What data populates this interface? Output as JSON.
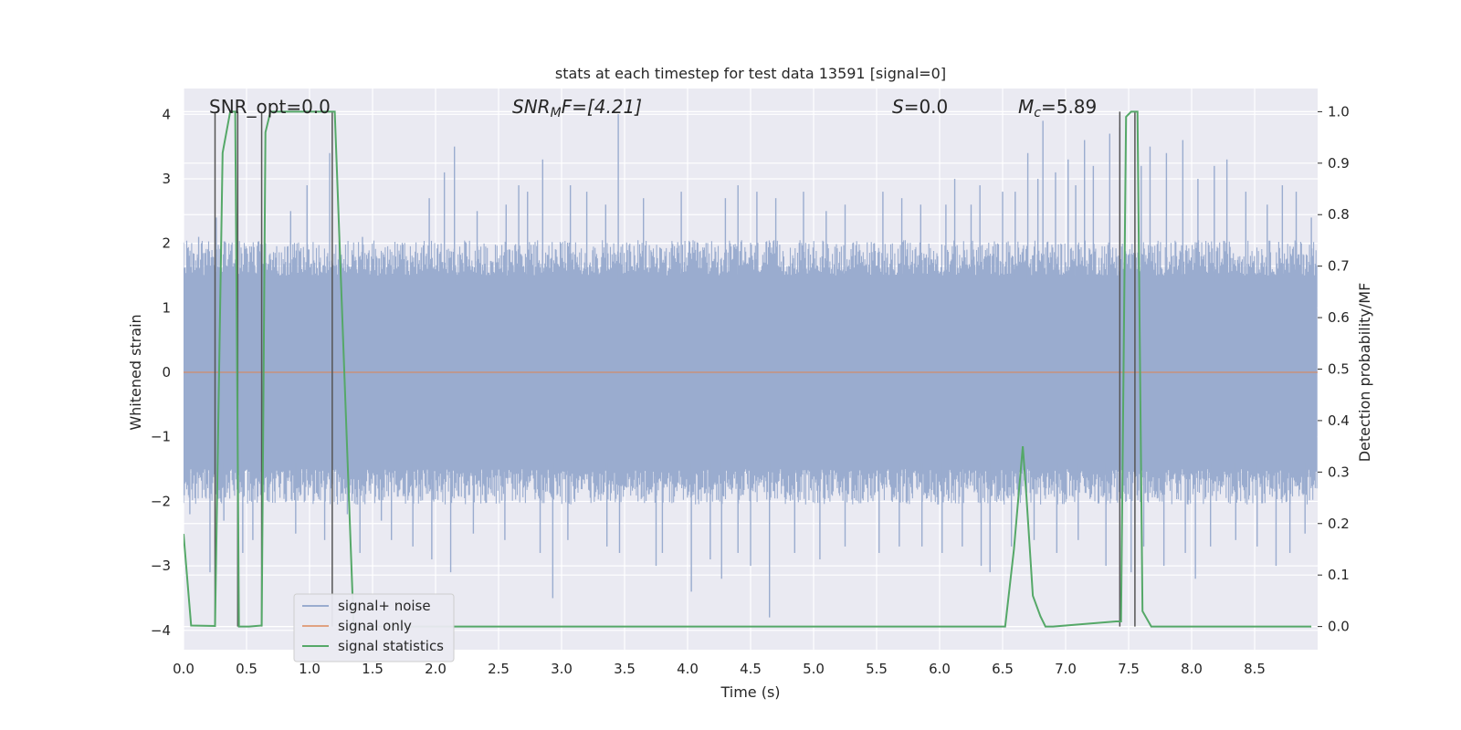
{
  "chart_data": {
    "type": "line",
    "title": "stats at each timestep for test data 13591 [signal=0]",
    "xlabel": "Time (s)",
    "ylabel_left": "Whitened strain",
    "ylabel_right": "Detection probability/MF",
    "xlim": [
      0.0,
      9.0
    ],
    "ylim_left": [
      -4.3,
      4.4
    ],
    "ylim_right": [
      -0.045,
      1.045
    ],
    "xticks": [
      "0.0",
      "0.5",
      "1.0",
      "1.5",
      "2.0",
      "2.5",
      "3.0",
      "3.5",
      "4.0",
      "4.5",
      "5.0",
      "5.5",
      "6.0",
      "6.5",
      "7.0",
      "7.5",
      "8.0",
      "8.5"
    ],
    "yticks_left": [
      "−4",
      "−3",
      "−2",
      "−1",
      "0",
      "1",
      "2",
      "3",
      "4"
    ],
    "yticks_right": [
      "0.0",
      "0.1",
      "0.2",
      "0.3",
      "0.4",
      "0.5",
      "0.6",
      "0.7",
      "0.8",
      "0.9",
      "1.0"
    ],
    "annotations": {
      "snr_opt": "SNR_opt=0.0",
      "snr_mf_sym": "SNR",
      "snr_mf_sub": "M",
      "snr_mf_rest": "F=[4.21]",
      "s_sym": "S",
      "s_rest": "=0.0",
      "mc_sym": "M",
      "mc_sub": "c",
      "mc_rest": "=5.89"
    },
    "legend": {
      "placement": "lower-left",
      "entries": [
        "signal+ noise",
        "signal only",
        "signal statistics"
      ]
    },
    "colors": {
      "background": "#eaeaf2",
      "grid": "#ffffff",
      "noise": "#9aaccf",
      "signal": "#dd8452",
      "statistics": "#55a868",
      "markers": "#555555"
    },
    "series": [
      {
        "name": "signal+ noise",
        "kind": "strain",
        "band_abs": 1.5,
        "spike_up": [
          [
            0.12,
            2.1
          ],
          [
            0.26,
            2.4
          ],
          [
            0.42,
            2.2
          ],
          [
            0.65,
            2.0
          ],
          [
            0.85,
            2.5
          ],
          [
            0.98,
            2.9
          ],
          [
            1.16,
            3.4
          ],
          [
            1.42,
            2.1
          ],
          [
            1.95,
            2.7
          ],
          [
            2.07,
            3.1
          ],
          [
            2.15,
            3.5
          ],
          [
            2.33,
            2.5
          ],
          [
            2.56,
            2.6
          ],
          [
            2.66,
            2.9
          ],
          [
            2.73,
            2.8
          ],
          [
            2.85,
            3.3
          ],
          [
            3.07,
            2.9
          ],
          [
            3.2,
            2.8
          ],
          [
            3.35,
            2.6
          ],
          [
            3.45,
            4.0
          ],
          [
            3.65,
            2.7
          ],
          [
            3.95,
            2.8
          ],
          [
            4.3,
            2.7
          ],
          [
            4.4,
            2.9
          ],
          [
            4.55,
            2.8
          ],
          [
            4.7,
            2.7
          ],
          [
            4.92,
            2.8
          ],
          [
            5.1,
            2.5
          ],
          [
            5.25,
            2.6
          ],
          [
            5.55,
            2.8
          ],
          [
            5.7,
            2.7
          ],
          [
            5.85,
            2.6
          ],
          [
            6.05,
            2.6
          ],
          [
            6.12,
            3.0
          ],
          [
            6.25,
            2.6
          ],
          [
            6.32,
            2.9
          ],
          [
            6.5,
            2.8
          ],
          [
            6.6,
            2.8
          ],
          [
            6.7,
            3.4
          ],
          [
            6.78,
            3.0
          ],
          [
            6.82,
            3.9
          ],
          [
            6.92,
            3.1
          ],
          [
            7.02,
            3.3
          ],
          [
            7.08,
            2.9
          ],
          [
            7.15,
            3.6
          ],
          [
            7.22,
            3.2
          ],
          [
            7.35,
            3.7
          ],
          [
            7.43,
            3.8
          ],
          [
            7.6,
            3.2
          ],
          [
            7.67,
            3.5
          ],
          [
            7.8,
            3.4
          ],
          [
            7.93,
            3.6
          ],
          [
            8.05,
            3.0
          ],
          [
            8.18,
            3.2
          ],
          [
            8.28,
            3.3
          ],
          [
            8.43,
            2.8
          ],
          [
            8.6,
            2.6
          ],
          [
            8.72,
            2.9
          ],
          [
            8.83,
            2.8
          ],
          [
            8.95,
            2.4
          ]
        ],
        "spike_down": [
          [
            0.05,
            -2.2
          ],
          [
            0.21,
            -3.1
          ],
          [
            0.32,
            -2.3
          ],
          [
            0.47,
            -2.8
          ],
          [
            0.55,
            -2.6
          ],
          [
            0.67,
            -2.0
          ],
          [
            0.89,
            -2.5
          ],
          [
            1.12,
            -2.6
          ],
          [
            1.3,
            -2.2
          ],
          [
            1.4,
            -2.8
          ],
          [
            1.57,
            -2.3
          ],
          [
            1.65,
            -2.6
          ],
          [
            1.82,
            -2.7
          ],
          [
            1.97,
            -2.9
          ],
          [
            2.12,
            -3.1
          ],
          [
            2.3,
            -2.5
          ],
          [
            2.55,
            -2.6
          ],
          [
            2.83,
            -2.8
          ],
          [
            2.93,
            -3.5
          ],
          [
            3.05,
            -2.6
          ],
          [
            3.36,
            -2.7
          ],
          [
            3.46,
            -2.8
          ],
          [
            3.75,
            -3.0
          ],
          [
            3.8,
            -2.8
          ],
          [
            4.03,
            -3.4
          ],
          [
            4.18,
            -2.9
          ],
          [
            4.27,
            -3.2
          ],
          [
            4.4,
            -2.8
          ],
          [
            4.5,
            -3.0
          ],
          [
            4.65,
            -3.8
          ],
          [
            4.85,
            -2.8
          ],
          [
            5.05,
            -2.9
          ],
          [
            5.25,
            -2.7
          ],
          [
            5.52,
            -2.8
          ],
          [
            5.68,
            -2.7
          ],
          [
            5.86,
            -2.7
          ],
          [
            6.02,
            -2.8
          ],
          [
            6.18,
            -2.7
          ],
          [
            6.33,
            -3.0
          ],
          [
            6.4,
            -3.1
          ],
          [
            6.57,
            -2.7
          ],
          [
            6.75,
            -2.6
          ],
          [
            6.93,
            -2.8
          ],
          [
            7.1,
            -2.6
          ],
          [
            7.32,
            -3.0
          ],
          [
            7.52,
            -3.1
          ],
          [
            7.62,
            -2.7
          ],
          [
            7.78,
            -3.0
          ],
          [
            7.95,
            -2.8
          ],
          [
            8.03,
            -3.2
          ],
          [
            8.15,
            -2.7
          ],
          [
            8.35,
            -2.6
          ],
          [
            8.52,
            -2.7
          ],
          [
            8.67,
            -3.0
          ],
          [
            8.78,
            -2.8
          ],
          [
            8.9,
            -2.5
          ]
        ]
      },
      {
        "name": "signal only",
        "x": [
          0.0,
          9.0
        ],
        "y": [
          0.0,
          0.0
        ]
      },
      {
        "name": "signal statistics",
        "x": [
          0.0,
          0.06,
          0.25,
          0.31,
          0.37,
          0.41,
          0.44,
          0.48,
          0.52,
          0.62,
          0.65,
          0.69,
          0.72,
          0.8,
          1.2,
          1.35,
          1.4,
          6.52,
          6.59,
          6.66,
          6.69,
          6.74,
          6.8,
          6.84,
          6.9,
          7.4,
          7.44,
          7.48,
          7.52,
          7.57,
          7.61,
          7.68,
          8.95
        ],
        "y": [
          0.18,
          0.002,
          0.001,
          0.92,
          1.0,
          1.0,
          0.0,
          0.0,
          0.0,
          0.002,
          0.96,
          1.0,
          1.0,
          1.0,
          1.0,
          0.0,
          0.0,
          0.0,
          0.15,
          0.35,
          0.25,
          0.06,
          0.02,
          0.0,
          0.0,
          0.01,
          0.01,
          0.99,
          1.0,
          1.0,
          0.03,
          0.0,
          0.0
        ]
      }
    ],
    "marker_lines": [
      0.25,
      0.43,
      0.62,
      1.18,
      7.43,
      7.55
    ]
  }
}
